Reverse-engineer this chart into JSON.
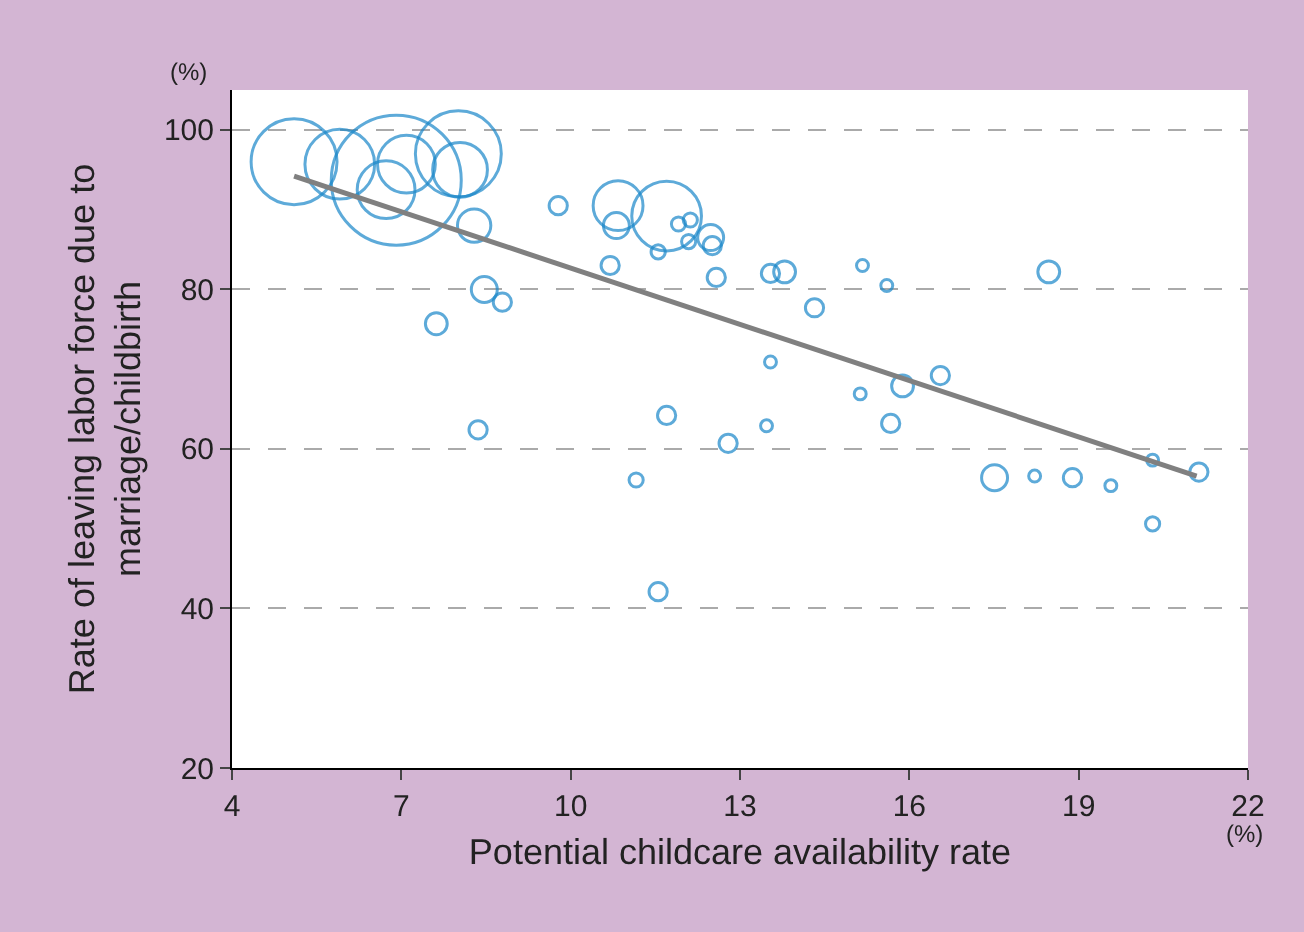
{
  "chart_data": {
    "type": "bubble",
    "xlabel": "Potential childcare availability rate",
    "ylabel": "Rate of leaving labor force due to marriage/childbirth",
    "annotations": [
      "(%)",
      "(%)"
    ],
    "xlim": [
      4,
      22
    ],
    "xticks": [
      4,
      7,
      10,
      13,
      16,
      19,
      22
    ],
    "ylim": [
      20,
      105
    ],
    "yticks": [
      20,
      40,
      60,
      80,
      100
    ],
    "grid": "y",
    "series": [
      {
        "color": "#1a87c9",
        "x": [
          5.1,
          5.91,
          6.91,
          6.73,
          7.09,
          8.01,
          8.04,
          8.29,
          8.47,
          8.79,
          7.62,
          8.36,
          9.78,
          10.84,
          10.81,
          11.7,
          11.91,
          12.12,
          12.09,
          12.48,
          12.51,
          11.55,
          10.7,
          12.58,
          13.54,
          13.79,
          15.17,
          15.6,
          18.47,
          14.32,
          13.54,
          16.55,
          15.88,
          15.13,
          11.7,
          13.47,
          15.67,
          12.79,
          11.16,
          17.51,
          18.22,
          18.89,
          19.57,
          20.31,
          21.13,
          20.31,
          11.55
        ],
        "values": [
          96.0,
          95.7,
          93.7,
          92.5,
          95.7,
          97.0,
          95.0,
          88.0,
          80.0,
          78.4,
          75.7,
          62.4,
          90.5,
          90.5,
          88.0,
          89.2,
          88.2,
          88.7,
          86.0,
          86.5,
          85.5,
          84.7,
          83.0,
          81.5,
          82.0,
          82.2,
          83.0,
          80.5,
          82.2,
          77.7,
          70.9,
          69.2,
          67.9,
          66.9,
          64.2,
          62.9,
          63.2,
          60.7,
          56.1,
          56.4,
          56.6,
          56.4,
          55.4,
          58.6,
          57.1,
          50.6,
          42.1
        ],
        "sizes": [
          0.43,
          0.28,
          1,
          0.19,
          0.19,
          0.43,
          0.17,
          0.06,
          0.035,
          0.016,
          0.024,
          0.016,
          0.016,
          0.14,
          0.035,
          0.28,
          0.009,
          0.009,
          0.009,
          0.035,
          0.016,
          0.009,
          0.016,
          0.016,
          0.016,
          0.024,
          0.006,
          0.006,
          0.024,
          0.016,
          0.006,
          0.016,
          0.024,
          0.006,
          0.016,
          0.006,
          0.016,
          0.016,
          0.009,
          0.035,
          0.006,
          0.016,
          0.006,
          0.006,
          0.016,
          0.009,
          0.016
        ]
      },
      {
        "type": "line",
        "color": "#808080",
        "x": [
          5.1,
          21.09
        ],
        "values": [
          94.2,
          56.6
        ]
      }
    ]
  }
}
